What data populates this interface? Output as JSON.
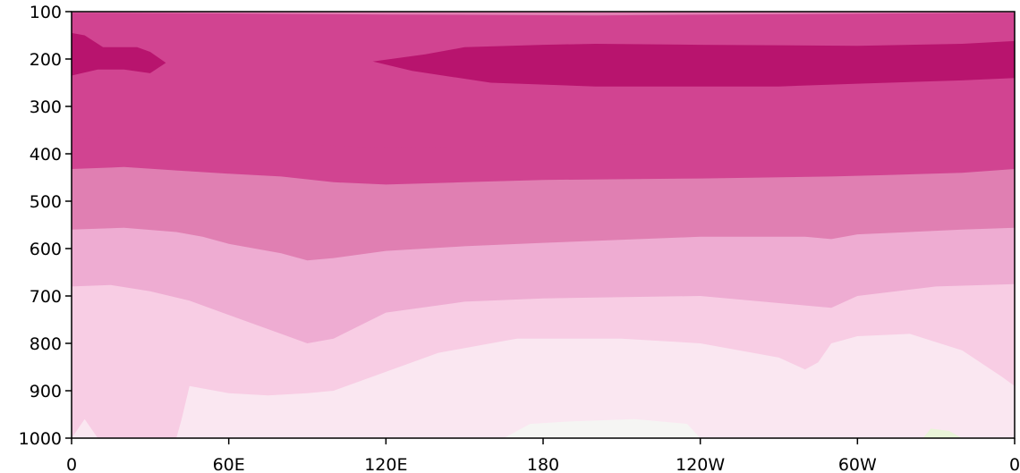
{
  "chart_data": {
    "type": "heatmap",
    "title": "",
    "xlabel": "",
    "ylabel": "",
    "x_ticks": [
      "0",
      "60E",
      "120E",
      "180",
      "120W",
      "60W",
      "0"
    ],
    "x_tick_lon": [
      0,
      60,
      120,
      180,
      240,
      300,
      360
    ],
    "y_ticks": [
      100,
      200,
      300,
      400,
      500,
      600,
      700,
      800,
      900,
      1000
    ],
    "xlim": [
      0,
      360
    ],
    "ylim": [
      1000,
      100
    ],
    "y_inverted": true,
    "grid": false,
    "colorbar": "none",
    "levels": [
      {
        "name": "level-top-dark",
        "color": "#b8146e",
        "lower": [
          [
            0,
            235
          ],
          [
            10,
            222
          ],
          [
            20,
            222
          ],
          [
            30,
            230
          ],
          [
            36,
            208
          ],
          [
            30,
            185
          ],
          [
            25,
            175
          ],
          [
            12,
            175
          ],
          [
            5,
            150
          ],
          [
            0,
            145
          ]
        ],
        "upper": null,
        "extra": [
          [
            115,
            205
          ],
          [
            135,
            190
          ],
          [
            150,
            175
          ],
          [
            180,
            170
          ],
          [
            200,
            168
          ],
          [
            240,
            170
          ],
          [
            300,
            172
          ],
          [
            340,
            168
          ],
          [
            360,
            162
          ],
          [
            360,
            240
          ],
          [
            340,
            245
          ],
          [
            300,
            252
          ],
          [
            270,
            258
          ],
          [
            240,
            258
          ],
          [
            200,
            258
          ],
          [
            160,
            250
          ],
          [
            130,
            225
          ],
          [
            115,
            205
          ]
        ]
      },
      {
        "name": "level-2",
        "color": "#d14491",
        "bound": [
          [
            0,
            367
          ],
          [
            20,
            365
          ],
          [
            40,
            368
          ],
          [
            60,
            372
          ],
          [
            80,
            375
          ],
          [
            100,
            383
          ],
          [
            120,
            388
          ],
          [
            150,
            385
          ],
          [
            180,
            382
          ],
          [
            240,
            380
          ],
          [
            280,
            378
          ],
          [
            300,
            376
          ],
          [
            330,
            372
          ],
          [
            360,
            366
          ]
        ]
      },
      {
        "name": "level-3",
        "color": "#e07fb2",
        "bound": [
          [
            0,
            432
          ],
          [
            20,
            428
          ],
          [
            40,
            435
          ],
          [
            60,
            442
          ],
          [
            80,
            448
          ],
          [
            100,
            460
          ],
          [
            120,
            465
          ],
          [
            150,
            460
          ],
          [
            180,
            455
          ],
          [
            240,
            452
          ],
          [
            290,
            448
          ],
          [
            310,
            445
          ],
          [
            340,
            440
          ],
          [
            360,
            432
          ]
        ]
      },
      {
        "name": "level-4",
        "color": "#eeacd2",
        "bound": [
          [
            0,
            560
          ],
          [
            20,
            556
          ],
          [
            40,
            565
          ],
          [
            50,
            575
          ],
          [
            60,
            590
          ],
          [
            80,
            610
          ],
          [
            90,
            625
          ],
          [
            100,
            620
          ],
          [
            120,
            605
          ],
          [
            150,
            595
          ],
          [
            180,
            588
          ],
          [
            240,
            575
          ],
          [
            280,
            575
          ],
          [
            290,
            580
          ],
          [
            300,
            570
          ],
          [
            340,
            560
          ],
          [
            360,
            556
          ]
        ]
      },
      {
        "name": "level-5",
        "color": "#f8cde4",
        "bound": [
          [
            0,
            680
          ],
          [
            15,
            677
          ],
          [
            30,
            690
          ],
          [
            45,
            710
          ],
          [
            60,
            740
          ],
          [
            80,
            780
          ],
          [
            90,
            800
          ],
          [
            100,
            790
          ],
          [
            120,
            735
          ],
          [
            150,
            712
          ],
          [
            180,
            705
          ],
          [
            240,
            700
          ],
          [
            280,
            720
          ],
          [
            290,
            725
          ],
          [
            300,
            700
          ],
          [
            330,
            680
          ],
          [
            360,
            675
          ]
        ]
      },
      {
        "name": "level-6",
        "color": "#fae7f1",
        "bound": [
          [
            0,
            1000
          ],
          [
            5,
            960
          ],
          [
            10,
            1000
          ],
          [
            40,
            1000
          ],
          [
            42,
            960
          ],
          [
            45,
            890
          ],
          [
            60,
            905
          ],
          [
            75,
            910
          ],
          [
            90,
            905
          ],
          [
            100,
            900
          ],
          [
            110,
            880
          ],
          [
            140,
            820
          ],
          [
            170,
            790
          ],
          [
            210,
            790
          ],
          [
            240,
            800
          ],
          [
            270,
            830
          ],
          [
            280,
            855
          ],
          [
            285,
            840
          ],
          [
            290,
            800
          ],
          [
            300,
            785
          ],
          [
            320,
            780
          ],
          [
            340,
            815
          ],
          [
            355,
            870
          ],
          [
            360,
            890
          ]
        ]
      },
      {
        "name": "level-7",
        "color": "#f5f5f3",
        "bound": [
          [
            165,
            1000
          ],
          [
            175,
            970
          ],
          [
            190,
            965
          ],
          [
            215,
            960
          ],
          [
            235,
            970
          ],
          [
            240,
            1000
          ]
        ]
      },
      {
        "name": "level-8",
        "color": "#e9f4d8",
        "bound": [
          [
            325,
            1000
          ],
          [
            328,
            980
          ],
          [
            335,
            985
          ],
          [
            340,
            1000
          ]
        ]
      }
    ]
  }
}
